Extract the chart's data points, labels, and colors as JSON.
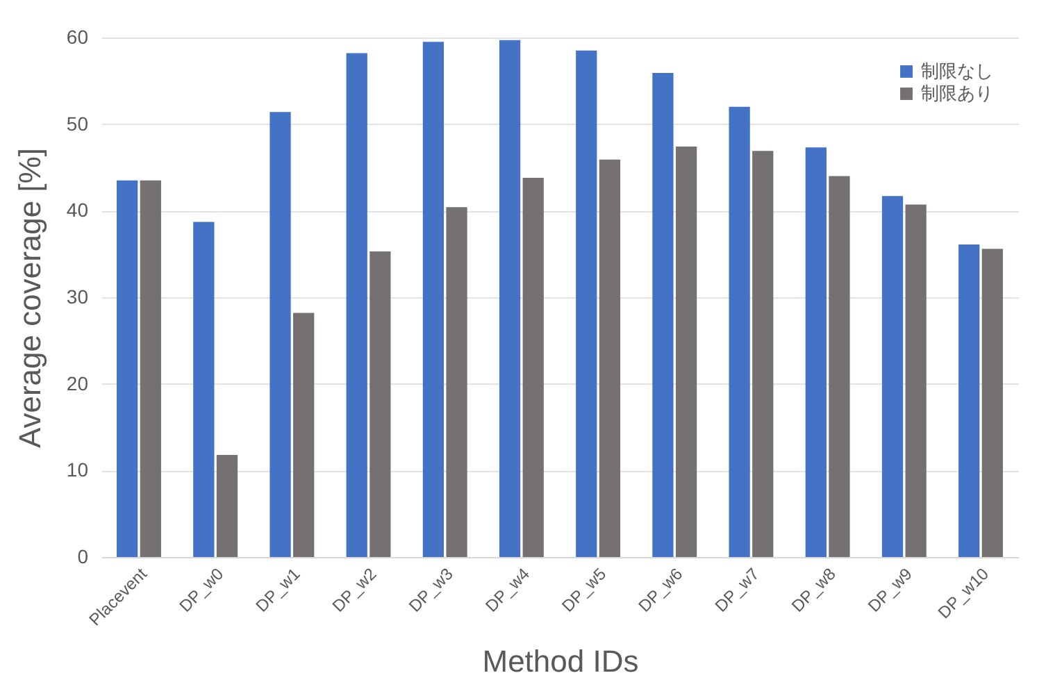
{
  "chart_data": {
    "type": "bar",
    "xlabel": "Method IDs",
    "ylabel": "Average coverage [%]",
    "categories": [
      "Placevent",
      "DP_w0",
      "DP_w1",
      "DP_w2",
      "DP_w3",
      "DP_w4",
      "DP_w5",
      "DP_w6",
      "DP_w7",
      "DP_w8",
      "DP_w9",
      "DP_w10"
    ],
    "series": [
      {
        "name": "制限なし",
        "color": "#4472c4",
        "values": [
          43.5,
          38.7,
          51.4,
          58.2,
          59.5,
          59.7,
          58.5,
          55.9,
          52.0,
          47.3,
          41.7,
          36.1
        ]
      },
      {
        "name": "制限あり",
        "color": "#767171",
        "values": [
          43.5,
          11.8,
          28.2,
          35.3,
          40.4,
          43.8,
          45.9,
          47.4,
          46.9,
          44.0,
          40.7,
          35.6
        ]
      }
    ],
    "ylim": [
      0,
      60
    ],
    "yticks": [
      0,
      10,
      20,
      30,
      40,
      50,
      60
    ],
    "grid": "y",
    "legend": "top right"
  }
}
